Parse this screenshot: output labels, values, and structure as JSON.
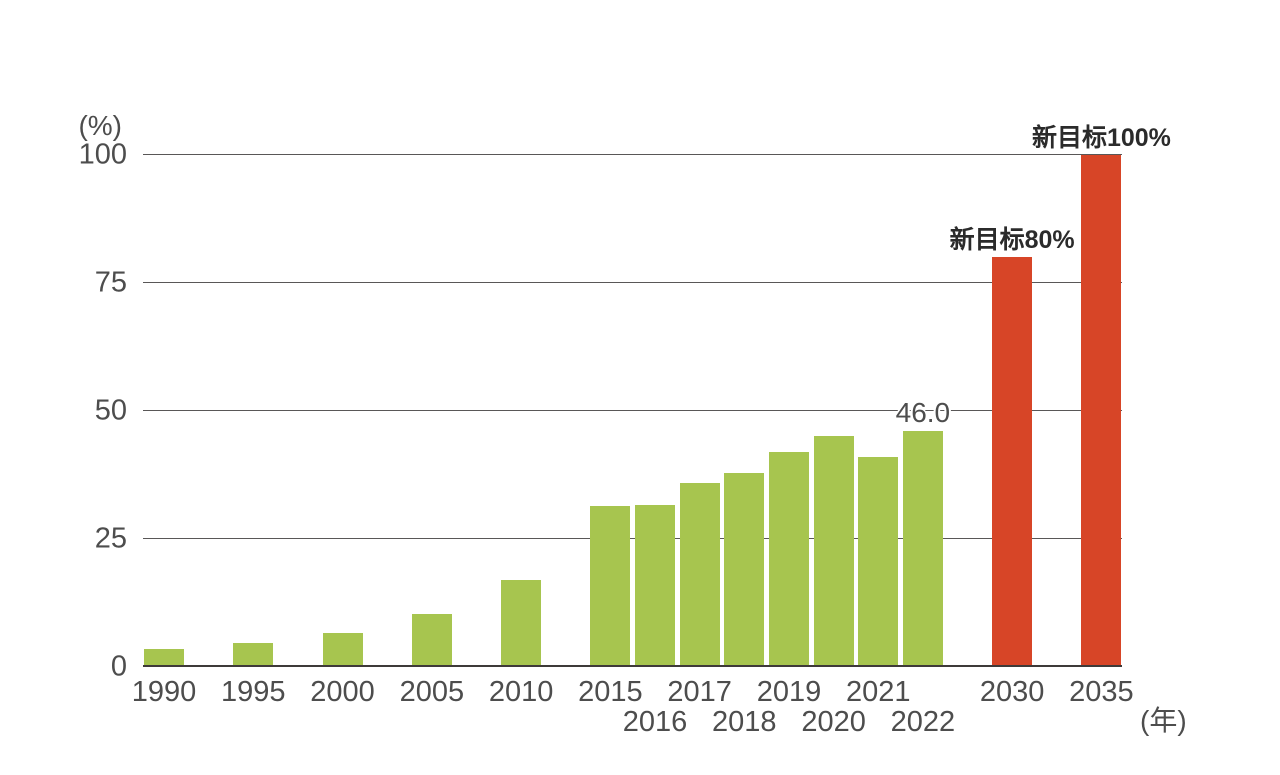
{
  "chart_data": {
    "type": "bar",
    "title": "",
    "unit_label": "(%)",
    "x_axis_unit_label": "(年)",
    "xlabel": "",
    "ylabel": "",
    "ylim": [
      0,
      100
    ],
    "yticks": [
      0,
      25,
      50,
      75,
      100
    ],
    "grid": true,
    "legend": "none",
    "categories": [
      "1990",
      "1995",
      "2000",
      "2005",
      "2010",
      "2015",
      "2016",
      "2017",
      "2018",
      "2019",
      "2020",
      "2021",
      "2022",
      "2030",
      "2035"
    ],
    "values": [
      3.6,
      4.7,
      6.6,
      10.3,
      17.0,
      31.5,
      31.6,
      36.0,
      37.8,
      42.0,
      45.2,
      41.1,
      46.0,
      80,
      100
    ],
    "bar_kind": [
      "actual",
      "actual",
      "actual",
      "actual",
      "actual",
      "actual",
      "actual",
      "actual",
      "actual",
      "actual",
      "actual",
      "actual",
      "actual",
      "target",
      "target"
    ],
    "colors": {
      "actual": "#A7C54F",
      "target": "#D74527"
    },
    "annotations": [
      {
        "category": "2022",
        "text": "46.0",
        "bold": false
      },
      {
        "category": "2030",
        "text": "新目标80%",
        "bold": true
      },
      {
        "category": "2035",
        "text": "新目标100%",
        "bold": true
      }
    ],
    "layout": {
      "slot": [
        0,
        2,
        4,
        6,
        8,
        10,
        11,
        12,
        13,
        14,
        15,
        16,
        17,
        19,
        21
      ],
      "label_row": [
        1,
        1,
        1,
        1,
        1,
        1,
        2,
        1,
        2,
        1,
        2,
        1,
        2,
        1,
        1
      ]
    }
  },
  "style_colors": {
    "grid_line": "#595757",
    "axis_line": "#3E3A39",
    "tick_text": "#4D4D4D",
    "annotation_text": "#2B2B2B",
    "background": "#FFFFFF"
  }
}
